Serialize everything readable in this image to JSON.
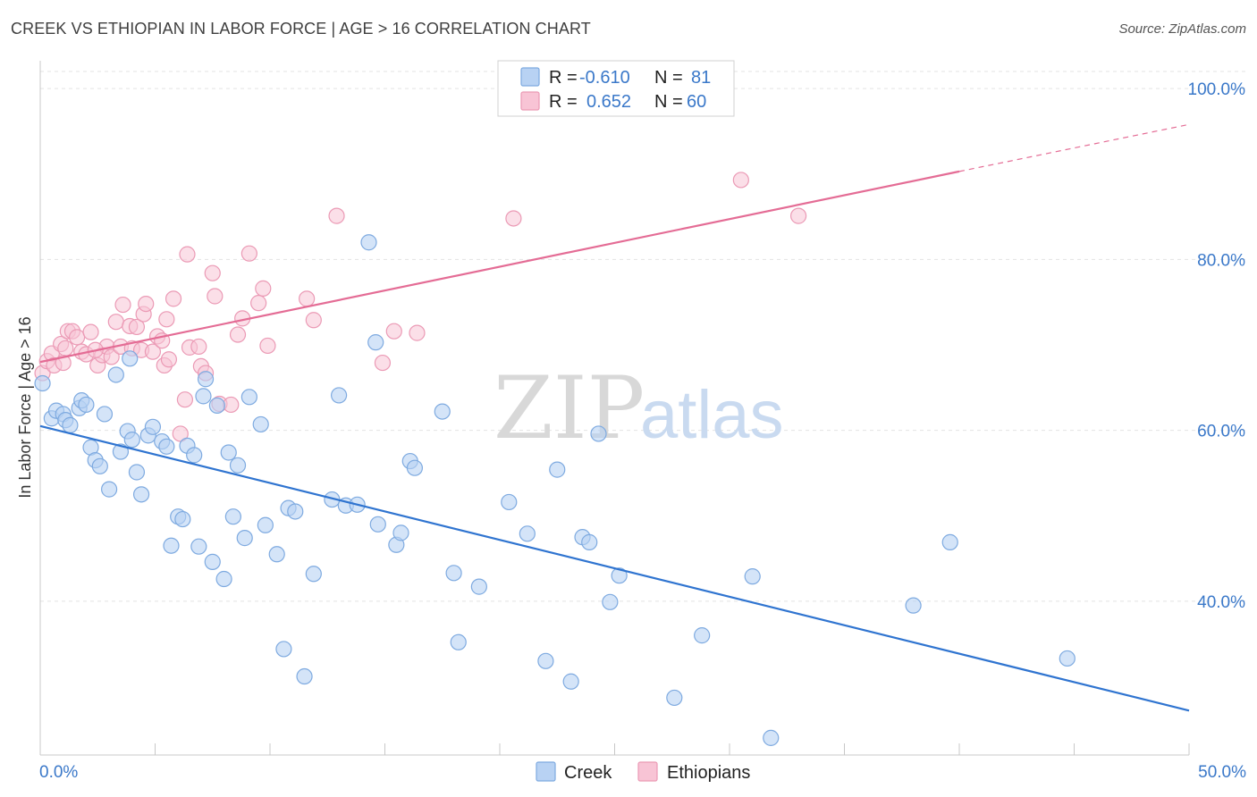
{
  "title": "CREEK VS ETHIOPIAN IN LABOR FORCE | AGE > 16 CORRELATION CHART",
  "source": "Source: ZipAtlas.com",
  "watermark": {
    "zip": "ZIP",
    "atlas": "atlas"
  },
  "colors": {
    "creek_fill": "#b8d2f3",
    "creek_stroke": "#7eaae0",
    "creek_line": "#2f74d0",
    "eth_fill": "#f8c4d5",
    "eth_stroke": "#eb9ab5",
    "eth_line": "#e46c95",
    "tick_text": "#3a78c9",
    "grid": "#e3e3e3"
  },
  "legend": {
    "rows": [
      {
        "r_label": "R =",
        "r_value": "-0.610",
        "n_label": "N =",
        "n_value": "81"
      },
      {
        "r_label": "R =",
        "r_value": "0.652",
        "n_label": "N =",
        "n_value": "60"
      }
    ]
  },
  "bottom_legend": [
    "Creek",
    "Ethiopians"
  ],
  "chart_data": {
    "type": "scatter",
    "title": "CREEK VS ETHIOPIAN IN LABOR FORCE | AGE > 16 CORRELATION CHART",
    "xlabel": "",
    "ylabel": "In Labor Force | Age > 16",
    "xlim": [
      0,
      50
    ],
    "ylim": [
      22,
      102
    ],
    "x_tick_labels": [
      "0.0%",
      "50.0%"
    ],
    "y_ticks": [
      40,
      60,
      80,
      100
    ],
    "y_tick_labels": [
      "40.0%",
      "60.0%",
      "80.0%",
      "100.0%"
    ],
    "grid": true,
    "legend_position": "top-center",
    "series": [
      {
        "name": "Creek",
        "r": -0.61,
        "n": 81,
        "trend": {
          "x0": 0,
          "y0": 60.5,
          "x1": 50,
          "y1": 27.2
        },
        "points": [
          [
            0.1,
            65.5
          ],
          [
            0.5,
            61.4
          ],
          [
            0.7,
            62.3
          ],
          [
            1.0,
            61.9
          ],
          [
            1.1,
            61.2
          ],
          [
            1.3,
            60.6
          ],
          [
            1.7,
            62.6
          ],
          [
            1.8,
            63.5
          ],
          [
            2.0,
            63.0
          ],
          [
            2.2,
            58.0
          ],
          [
            2.4,
            56.5
          ],
          [
            2.6,
            55.8
          ],
          [
            2.8,
            61.9
          ],
          [
            3.0,
            53.1
          ],
          [
            3.3,
            66.5
          ],
          [
            3.5,
            57.5
          ],
          [
            3.8,
            59.9
          ],
          [
            4.0,
            58.9
          ],
          [
            4.2,
            55.1
          ],
          [
            4.4,
            52.5
          ],
          [
            4.7,
            59.4
          ],
          [
            4.9,
            60.4
          ],
          [
            5.3,
            58.7
          ],
          [
            5.5,
            58.1
          ],
          [
            5.7,
            46.5
          ],
          [
            6.0,
            49.9
          ],
          [
            6.2,
            49.6
          ],
          [
            6.4,
            58.2
          ],
          [
            6.7,
            57.1
          ],
          [
            6.9,
            46.4
          ],
          [
            7.1,
            64.0
          ],
          [
            7.2,
            66.0
          ],
          [
            7.5,
            44.6
          ],
          [
            7.7,
            62.9
          ],
          [
            8.0,
            42.6
          ],
          [
            8.2,
            57.4
          ],
          [
            8.4,
            49.9
          ],
          [
            8.6,
            55.9
          ],
          [
            8.9,
            47.4
          ],
          [
            9.1,
            63.9
          ],
          [
            9.6,
            60.7
          ],
          [
            9.8,
            48.9
          ],
          [
            10.3,
            45.5
          ],
          [
            10.6,
            34.4
          ],
          [
            10.8,
            50.9
          ],
          [
            11.1,
            50.5
          ],
          [
            11.5,
            31.2
          ],
          [
            11.9,
            43.2
          ],
          [
            12.7,
            51.9
          ],
          [
            13.0,
            64.1
          ],
          [
            13.3,
            51.2
          ],
          [
            13.8,
            51.3
          ],
          [
            14.3,
            82.0
          ],
          [
            14.6,
            70.3
          ],
          [
            14.7,
            49.0
          ],
          [
            15.5,
            46.6
          ],
          [
            15.7,
            48.0
          ],
          [
            16.1,
            56.4
          ],
          [
            16.3,
            55.6
          ],
          [
            17.5,
            62.2
          ],
          [
            18.0,
            43.3
          ],
          [
            18.2,
            35.2
          ],
          [
            19.1,
            41.7
          ],
          [
            20.4,
            51.6
          ],
          [
            21.2,
            47.9
          ],
          [
            22.0,
            33.0
          ],
          [
            22.5,
            55.4
          ],
          [
            23.1,
            30.6
          ],
          [
            23.6,
            47.5
          ],
          [
            23.9,
            46.9
          ],
          [
            24.3,
            59.6
          ],
          [
            24.8,
            39.9
          ],
          [
            25.2,
            43.0
          ],
          [
            27.6,
            28.7
          ],
          [
            28.8,
            36.0
          ],
          [
            31.0,
            42.9
          ],
          [
            31.8,
            24.0
          ],
          [
            38.0,
            39.5
          ],
          [
            39.6,
            46.9
          ],
          [
            44.7,
            33.3
          ],
          [
            3.9,
            68.4
          ]
        ]
      },
      {
        "name": "Ethiopians",
        "r": 0.652,
        "n": 60,
        "trend": {
          "x0": 0,
          "y0": 68.0,
          "x1": 40,
          "y1": 90.3,
          "dash_x1": 50,
          "dash_y1": 95.8
        },
        "points": [
          [
            0.1,
            66.7
          ],
          [
            0.3,
            68.1
          ],
          [
            0.5,
            69.0
          ],
          [
            0.6,
            67.6
          ],
          [
            0.9,
            70.1
          ],
          [
            1.1,
            69.6
          ],
          [
            1.2,
            71.6
          ],
          [
            1.4,
            71.6
          ],
          [
            1.6,
            70.9
          ],
          [
            1.8,
            69.2
          ],
          [
            2.0,
            68.9
          ],
          [
            2.2,
            71.5
          ],
          [
            2.5,
            67.6
          ],
          [
            2.7,
            68.8
          ],
          [
            2.9,
            69.8
          ],
          [
            3.1,
            68.6
          ],
          [
            3.3,
            72.7
          ],
          [
            3.5,
            69.8
          ],
          [
            3.6,
            74.7
          ],
          [
            3.9,
            72.2
          ],
          [
            4.0,
            69.6
          ],
          [
            4.2,
            72.1
          ],
          [
            4.4,
            69.4
          ],
          [
            4.5,
            73.6
          ],
          [
            4.6,
            74.8
          ],
          [
            4.9,
            69.2
          ],
          [
            5.1,
            71.0
          ],
          [
            5.3,
            70.5
          ],
          [
            5.4,
            67.6
          ],
          [
            5.5,
            73.0
          ],
          [
            5.8,
            75.4
          ],
          [
            6.1,
            59.6
          ],
          [
            6.3,
            63.6
          ],
          [
            6.4,
            80.6
          ],
          [
            6.5,
            69.7
          ],
          [
            6.9,
            69.8
          ],
          [
            7.0,
            67.5
          ],
          [
            7.2,
            66.7
          ],
          [
            7.5,
            78.4
          ],
          [
            7.6,
            75.7
          ],
          [
            7.8,
            63.1
          ],
          [
            8.6,
            71.2
          ],
          [
            8.8,
            73.1
          ],
          [
            9.1,
            80.7
          ],
          [
            9.5,
            74.9
          ],
          [
            9.7,
            76.6
          ],
          [
            9.9,
            69.9
          ],
          [
            11.6,
            75.4
          ],
          [
            11.9,
            72.9
          ],
          [
            12.9,
            85.1
          ],
          [
            14.9,
            67.9
          ],
          [
            15.4,
            71.6
          ],
          [
            16.4,
            71.4
          ],
          [
            20.6,
            84.8
          ],
          [
            30.5,
            89.3
          ],
          [
            33.0,
            85.1
          ],
          [
            5.6,
            68.3
          ],
          [
            1.0,
            67.9
          ],
          [
            2.4,
            69.4
          ],
          [
            8.3,
            63.0
          ]
        ]
      }
    ]
  }
}
